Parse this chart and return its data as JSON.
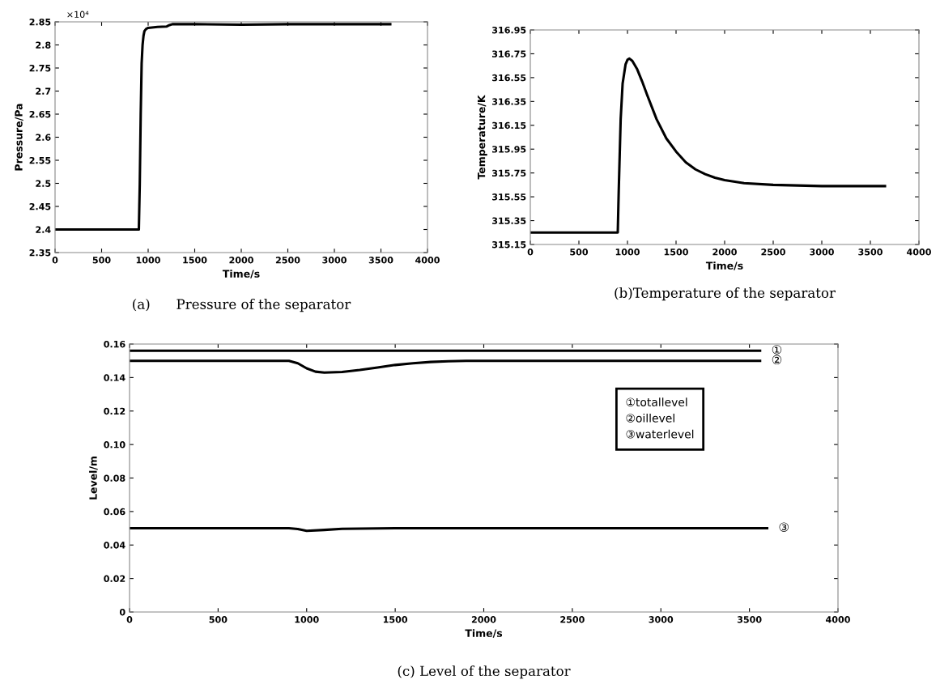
{
  "chart_data": [
    {
      "type": "line",
      "title": "(a)      Pressure of the separator",
      "xlabel": "Time/s",
      "ylabel": "Pressure/Pa",
      "annotations": [
        "×10⁴"
      ],
      "xlim": [
        0,
        4000
      ],
      "xticks": [
        0,
        500,
        1000,
        1500,
        2000,
        2500,
        3000,
        3500,
        4000
      ],
      "ylim": [
        2.35,
        2.85
      ],
      "yticks": [
        2.35,
        2.4,
        2.45,
        2.5,
        2.55,
        2.6,
        2.65,
        2.7,
        2.75,
        2.8,
        2.85
      ],
      "series": [
        {
          "color": "#000000",
          "x": [
            0,
            500,
            900,
            910,
            920,
            930,
            940,
            950,
            960,
            980,
            1000,
            1100,
            1200,
            1230,
            1260,
            1500,
            2000,
            2500,
            3000,
            3600
          ],
          "values": [
            2.4,
            2.4,
            2.4,
            2.5,
            2.65,
            2.76,
            2.8,
            2.82,
            2.83,
            2.835,
            2.837,
            2.839,
            2.84,
            2.843,
            2.845,
            2.845,
            2.844,
            2.845,
            2.845,
            2.845
          ]
        }
      ]
    },
    {
      "type": "line",
      "title": "(b)Temperature of the separator",
      "xlabel": "Time/s",
      "ylabel": "Temperature/K",
      "xlim": [
        0,
        4000
      ],
      "xticks": [
        0,
        500,
        1000,
        1500,
        2000,
        2500,
        3000,
        3500,
        4000
      ],
      "ylim": [
        315.15,
        316.95
      ],
      "yticks": [
        315.15,
        315.35,
        315.55,
        315.75,
        315.95,
        316.15,
        316.35,
        316.55,
        316.75,
        316.95
      ],
      "series": [
        {
          "color": "#000000",
          "x": [
            0,
            500,
            900,
            910,
            930,
            950,
            980,
            1000,
            1020,
            1050,
            1100,
            1150,
            1200,
            1300,
            1400,
            1500,
            1600,
            1700,
            1800,
            1900,
            2000,
            2200,
            2500,
            3000,
            3650
          ],
          "values": [
            315.25,
            315.25,
            315.25,
            315.6,
            316.2,
            316.5,
            316.66,
            316.7,
            316.71,
            316.69,
            316.62,
            316.52,
            316.41,
            316.2,
            316.04,
            315.93,
            315.84,
            315.78,
            315.74,
            315.71,
            315.69,
            315.665,
            315.65,
            315.64,
            315.64
          ]
        }
      ]
    },
    {
      "type": "line",
      "title": "(c) Level of the separator",
      "xlabel": "Time/s",
      "ylabel": "Level/m",
      "annotations": [
        "①totallevel",
        "②oillevel",
        "③waterlevel"
      ],
      "xlim": [
        0,
        4000
      ],
      "xticks": [
        0,
        500,
        1000,
        1500,
        2000,
        2500,
        3000,
        3500,
        4000
      ],
      "ylim": [
        0,
        0.16
      ],
      "yticks": [
        0,
        {
          "value": 0.02,
          "label": "0.02"
        },
        {
          "value": 0.04,
          "label": "0.04"
        },
        {
          "value": 0.06,
          "label": "0.06"
        },
        {
          "value": 0.08,
          "label": "0.08"
        },
        {
          "value": 0.1,
          "label": "0.10"
        },
        {
          "value": 0.12,
          "label": "0.12"
        },
        {
          "value": 0.14,
          "label": "0.14"
        },
        {
          "value": 0.16,
          "label": "0.16"
        }
      ],
      "series": [
        {
          "name": "①",
          "color": "#000000",
          "x": [
            0,
            3560
          ],
          "values": [
            0.156,
            0.156
          ]
        },
        {
          "name": "②",
          "color": "#000000",
          "x": [
            0,
            900,
            950,
            1000,
            1050,
            1100,
            1200,
            1300,
            1400,
            1500,
            1600,
            1700,
            1800,
            1900,
            2000,
            3560
          ],
          "values": [
            0.15,
            0.15,
            0.1485,
            0.1455,
            0.1435,
            0.143,
            0.1433,
            0.1445,
            0.146,
            0.1475,
            0.1485,
            0.1493,
            0.1497,
            0.15,
            0.15,
            0.15
          ]
        },
        {
          "name": "③",
          "color": "#000000",
          "x": [
            0,
            900,
            950,
            1000,
            1100,
            1200,
            1500,
            3600
          ],
          "values": [
            0.05,
            0.05,
            0.0495,
            0.0485,
            0.049,
            0.0497,
            0.05,
            0.05
          ]
        }
      ]
    }
  ]
}
